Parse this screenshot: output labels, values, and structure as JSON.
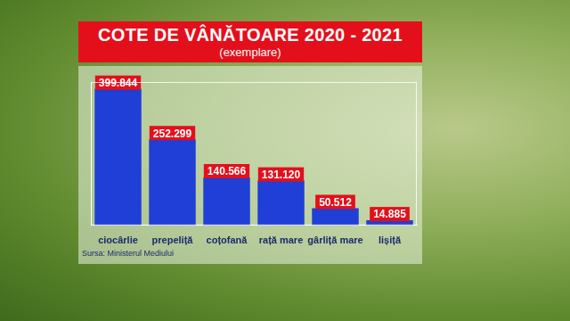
{
  "chart_data": {
    "type": "bar",
    "title": "COTE DE VÂNĂTOARE 2020 - 2021",
    "subtitle": "(exemplare)",
    "categories": [
      "ciocârlie",
      "prepeliță",
      "coțofană",
      "rață mare",
      "gârliță mare",
      "lișiță"
    ],
    "values": [
      399844,
      252299,
      140566,
      131120,
      50512,
      14885
    ],
    "value_labels": [
      "399.844",
      "252.299",
      "140.566",
      "131.120",
      "50.512",
      "14.885"
    ],
    "data_labels": true,
    "color": "#1f3fd6",
    "ylim": [
      0,
      420000
    ],
    "grid": false,
    "tick_labels": "x",
    "source": "Sursa: Ministerul Mediului"
  }
}
